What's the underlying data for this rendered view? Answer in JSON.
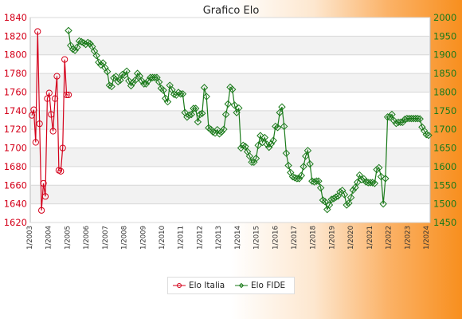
{
  "chart_data": {
    "type": "line",
    "title": "Grafico Elo",
    "grid": true,
    "legend_position": "bottom",
    "left_axis": {
      "ylim": [
        1620,
        1840
      ],
      "ticks": [
        1620,
        1640,
        1660,
        1680,
        1700,
        1720,
        1740,
        1760,
        1780,
        1800,
        1820,
        1840
      ]
    },
    "right_axis": {
      "ylim": [
        1450,
        2000
      ],
      "ticks": [
        1450,
        1500,
        1550,
        1600,
        1650,
        1700,
        1750,
        1800,
        1850,
        1900,
        1950,
        2000
      ]
    },
    "x_tick_labels": [
      "1/2003",
      "1/2004",
      "1/2005",
      "1/2006",
      "1/2007",
      "1/2008",
      "1/2009",
      "1/2010",
      "1/2011",
      "1/2012",
      "1/2013",
      "1/2014",
      "1/2015",
      "1/2016",
      "1/2017",
      "1/2018",
      "1/2019",
      "1/2020",
      "1/2021",
      "1/2022",
      "1/2023",
      "1/2024"
    ],
    "series": [
      {
        "name": "Elo Italia",
        "axis": "left",
        "color": "#d4001a",
        "marker": "circle",
        "values": [
          1735,
          1741,
          1706,
          1825,
          1726,
          1633,
          1662,
          1648,
          1753,
          1759,
          1736,
          1718,
          1753,
          1777,
          1676,
          1675,
          1700,
          1795,
          1757,
          1757
        ]
      },
      {
        "name": "Elo FIDE",
        "axis": "right",
        "color": "#1a7a1a",
        "marker": "diamond",
        "values": [
          1965,
          1925,
          1915,
          1912,
          1920,
          1937,
          1935,
          1932,
          1928,
          1933,
          1930,
          1922,
          1910,
          1898,
          1880,
          1873,
          1878,
          1865,
          1855,
          1818,
          1815,
          1838,
          1842,
          1828,
          1832,
          1847,
          1845,
          1856,
          1830,
          1817,
          1826,
          1832,
          1850,
          1843,
          1830,
          1822,
          1822,
          1830,
          1839,
          1839,
          1839,
          1839,
          1827,
          1810,
          1805,
          1783,
          1774,
          1818,
          1806,
          1794,
          1792,
          1799,
          1795,
          1795,
          1745,
          1733,
          1738,
          1740,
          1756,
          1756,
          1720,
          1740,
          1743,
          1812,
          1788,
          1704,
          1700,
          1693,
          1690,
          1699,
          1688,
          1693,
          1700,
          1740,
          1768,
          1813,
          1807,
          1765,
          1745,
          1757,
          1650,
          1657,
          1654,
          1640,
          1628,
          1612,
          1612,
          1622,
          1657,
          1683,
          1665,
          1678,
          1660,
          1652,
          1661,
          1670,
          1708,
          1705,
          1745,
          1760,
          1708,
          1636,
          1603,
          1584,
          1573,
          1570,
          1568,
          1568,
          1576,
          1600,
          1628,
          1643,
          1607,
          1561,
          1559,
          1561,
          1561,
          1543,
          1510,
          1506,
          1485,
          1497,
          1512,
          1514,
          1518,
          1521,
          1532,
          1536,
          1525,
          1497,
          1502,
          1517,
          1537,
          1544,
          1558,
          1577,
          1565,
          1567,
          1559,
          1557,
          1557,
          1557,
          1555,
          1592,
          1597,
          1573,
          1500,
          1568,
          1733,
          1733,
          1740,
          1723,
          1716,
          1719,
          1719,
          1719,
          1727,
          1729,
          1729,
          1729,
          1729,
          1729,
          1729,
          1728,
          1706,
          1696,
          1686,
          1684
        ]
      }
    ]
  }
}
